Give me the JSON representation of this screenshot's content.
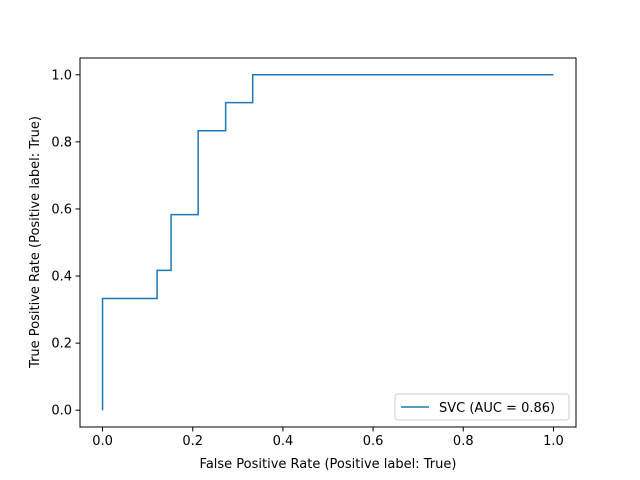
{
  "chart_data": {
    "type": "line",
    "title": "",
    "xlabel": "False Positive Rate (Positive label: True)",
    "ylabel": "True Positive Rate (Positive label: True)",
    "xlim": [
      -0.05,
      1.05
    ],
    "ylim": [
      -0.05,
      1.05
    ],
    "x_ticks": [
      0.0,
      0.2,
      0.4,
      0.6,
      0.8,
      1.0
    ],
    "y_ticks": [
      0.0,
      0.2,
      0.4,
      0.6,
      0.8,
      1.0
    ],
    "x_tick_labels": [
      "0.0",
      "0.2",
      "0.4",
      "0.6",
      "0.8",
      "1.0"
    ],
    "y_tick_labels": [
      "0.0",
      "0.2",
      "0.4",
      "0.6",
      "0.8",
      "1.0"
    ],
    "grid": false,
    "legend_position": "lower-right",
    "series": [
      {
        "name": "SVC (AUC = 0.86)",
        "color": "#1f77b4",
        "drawstyle": "steps",
        "x": [
          0.0,
          0.0,
          0.121,
          0.121,
          0.152,
          0.152,
          0.212,
          0.212,
          0.273,
          0.273,
          0.333,
          0.333,
          1.0
        ],
        "y": [
          0.0,
          0.333,
          0.333,
          0.417,
          0.417,
          0.583,
          0.583,
          0.833,
          0.833,
          0.917,
          0.917,
          1.0,
          1.0
        ]
      }
    ]
  }
}
